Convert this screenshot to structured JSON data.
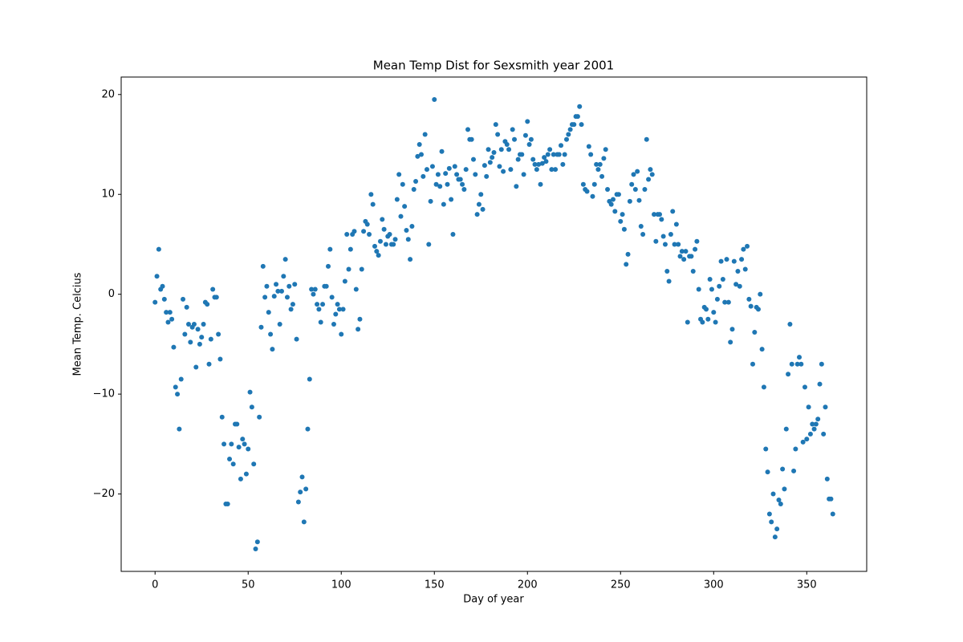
{
  "chart_data": {
    "type": "scatter",
    "title": "Mean Temp Dist for Sexsmith year 2001",
    "xlabel": "Day of year",
    "ylabel": "Mean Temp. Celcius",
    "color": "#1f77b4",
    "xlim": [
      -18.2,
      382.2
    ],
    "ylim": [
      -27.75,
      21.75
    ],
    "xticks": [
      0,
      50,
      100,
      150,
      200,
      250,
      300,
      350
    ],
    "yticks": [
      {
        "value": -20,
        "label": "−20"
      },
      {
        "value": -10,
        "label": "−10"
      },
      0,
      10,
      20
    ],
    "x": [
      0,
      1,
      2,
      3,
      4,
      5,
      6,
      7,
      8,
      9,
      10,
      11,
      12,
      13,
      14,
      15,
      16,
      17,
      18,
      19,
      20,
      21,
      22,
      23,
      24,
      25,
      26,
      27,
      28,
      29,
      30,
      31,
      32,
      33,
      34,
      35,
      36,
      37,
      38,
      39,
      40,
      41,
      42,
      43,
      44,
      45,
      46,
      47,
      48,
      49,
      50,
      51,
      52,
      53,
      54,
      55,
      56,
      57,
      58,
      59,
      60,
      61,
      62,
      63,
      64,
      65,
      66,
      67,
      68,
      69,
      70,
      71,
      72,
      73,
      74,
      75,
      76,
      77,
      78,
      79,
      80,
      81,
      82,
      83,
      84,
      85,
      86,
      87,
      88,
      89,
      90,
      91,
      92,
      93,
      94,
      95,
      96,
      97,
      98,
      99,
      100,
      101,
      102,
      103,
      104,
      105,
      106,
      107,
      108,
      109,
      110,
      111,
      112,
      113,
      114,
      115,
      116,
      117,
      118,
      119,
      120,
      121,
      122,
      123,
      124,
      125,
      126,
      127,
      128,
      129,
      130,
      131,
      132,
      133,
      134,
      135,
      136,
      137,
      138,
      139,
      140,
      141,
      142,
      143,
      144,
      145,
      146,
      147,
      148,
      149,
      150,
      151,
      152,
      153,
      154,
      155,
      156,
      157,
      158,
      159,
      160,
      161,
      162,
      163,
      164,
      165,
      166,
      167,
      168,
      169,
      170,
      171,
      172,
      173,
      174,
      175,
      176,
      177,
      178,
      179,
      180,
      181,
      182,
      183,
      184,
      185,
      186,
      187,
      188,
      189,
      190,
      191,
      192,
      193,
      194,
      195,
      196,
      197,
      198,
      199,
      200,
      201,
      202,
      203,
      204,
      205,
      206,
      207,
      208,
      209,
      210,
      211,
      212,
      213,
      214,
      215,
      216,
      217,
      218,
      219,
      220,
      221,
      222,
      223,
      224,
      225,
      226,
      227,
      228,
      229,
      230,
      231,
      232,
      233,
      234,
      235,
      236,
      237,
      238,
      239,
      240,
      241,
      242,
      243,
      244,
      245,
      246,
      247,
      248,
      249,
      250,
      251,
      252,
      253,
      254,
      255,
      256,
      257,
      258,
      259,
      260,
      261,
      262,
      263,
      264,
      265,
      266,
      267,
      268,
      269,
      270,
      271,
      272,
      273,
      274,
      275,
      276,
      277,
      278,
      279,
      280,
      281,
      282,
      283,
      284,
      285,
      286,
      287,
      288,
      289,
      290,
      291,
      292,
      293,
      294,
      295,
      296,
      297,
      298,
      299,
      300,
      301,
      302,
      303,
      304,
      305,
      306,
      307,
      308,
      309,
      310,
      311,
      312,
      313,
      314,
      315,
      316,
      317,
      318,
      319,
      320,
      321,
      322,
      323,
      324,
      325,
      326,
      327,
      328,
      329,
      330,
      331,
      332,
      333,
      334,
      335,
      336,
      337,
      338,
      339,
      340,
      341,
      342,
      343,
      344,
      345,
      346,
      347,
      348,
      349,
      350,
      351,
      352,
      353,
      354,
      355,
      356,
      357,
      358,
      359,
      360,
      361,
      362,
      363,
      364
    ],
    "values": [
      -0.8,
      1.8,
      4.5,
      0.5,
      0.8,
      -0.5,
      -1.8,
      -2.8,
      -1.8,
      -2.5,
      -5.3,
      -9.3,
      -10,
      -13.5,
      -8.5,
      -0.5,
      -4,
      -1.3,
      -3,
      -4.8,
      -3.3,
      -3,
      -7.3,
      -3.5,
      -5,
      -4.3,
      -3,
      -0.8,
      -1,
      -7,
      -4.5,
      0.5,
      -0.3,
      -0.3,
      -4,
      -6.5,
      -12.3,
      -15,
      -21,
      -21,
      -16.5,
      -15,
      -17,
      -13,
      -13,
      -15.3,
      -18.5,
      -14.5,
      -15,
      -18,
      -15.5,
      -9.8,
      -11.3,
      -17,
      -25.5,
      -24.8,
      -12.3,
      -3.3,
      2.8,
      -0.3,
      0.8,
      -1.8,
      -4,
      -5.5,
      -0.2,
      1,
      0.3,
      -3,
      0.3,
      1.8,
      3.5,
      -0.3,
      0.8,
      -1.5,
      -1,
      1,
      -4.5,
      -20.8,
      -19.8,
      -18.3,
      -22.8,
      -19.5,
      -13.5,
      -8.5,
      0.5,
      0,
      0.5,
      -1,
      -1.5,
      -2.8,
      -1,
      0.8,
      0.8,
      2.8,
      4.5,
      -0.3,
      -3,
      -2,
      -1,
      -1.5,
      -4,
      -1.5,
      1.3,
      6,
      2.5,
      4.5,
      6,
      6.3,
      0.5,
      -3.5,
      -2.5,
      2.5,
      6.3,
      7.3,
      7,
      6,
      10,
      9,
      4.8,
      4.3,
      3.9,
      5.3,
      7.5,
      6.5,
      5,
      5.8,
      6,
      5,
      5,
      5.5,
      9.5,
      12,
      7.8,
      11,
      8.8,
      6.4,
      5.5,
      3.5,
      6.8,
      10.5,
      11.3,
      13.8,
      15,
      14,
      11.8,
      16,
      12.5,
      5,
      9.3,
      12.8,
      19.5,
      11,
      12,
      10.8,
      14.3,
      9,
      12.1,
      11,
      12.6,
      9.5,
      6,
      12.8,
      12,
      11.5,
      11.5,
      11,
      10.5,
      12.5,
      16.5,
      15.5,
      15.5,
      13.5,
      12,
      8,
      9,
      10,
      8.5,
      12.9,
      11.8,
      14.5,
      13.2,
      13.7,
      14.2,
      17,
      16,
      12.8,
      14.5,
      12.3,
      15.3,
      15,
      14.5,
      12.5,
      16.5,
      15.5,
      10.8,
      13.5,
      14,
      14,
      12,
      15.9,
      17.3,
      15,
      15.5,
      13.5,
      13,
      12.5,
      13,
      11,
      13.1,
      13.7,
      13.3,
      14,
      14.5,
      12.5,
      14,
      12.5,
      14,
      14,
      14.9,
      13,
      14,
      15.5,
      16,
      16.5,
      17,
      17,
      17.8,
      17.8,
      18.8,
      17,
      11,
      10.5,
      10.3,
      14.8,
      14,
      9.8,
      11,
      13,
      12.5,
      13,
      11.8,
      13.6,
      14.5,
      10.5,
      9.3,
      9,
      9.5,
      8.3,
      10,
      10,
      7.3,
      8,
      6.5,
      3,
      4,
      9.3,
      11,
      12,
      10.5,
      12.3,
      9.4,
      6.8,
      6,
      10.5,
      15.5,
      11.5,
      12.5,
      12,
      8,
      5.3,
      8,
      8,
      7.5,
      5.8,
      5,
      2.3,
      1.3,
      6,
      8.3,
      5,
      7,
      5,
      3.8,
      4.3,
      3.5,
      4.3,
      -2.8,
      3.8,
      3.8,
      2.3,
      4.5,
      5.3,
      0.5,
      -2.5,
      -2.8,
      -1.3,
      -1.5,
      -2.5,
      1.5,
      0.5,
      -1.8,
      -2.8,
      -0.5,
      0.8,
      3.3,
      1.5,
      -0.8,
      3.5,
      -0.8,
      -4.8,
      -3.5,
      3.3,
      1,
      2.3,
      0.8,
      3.5,
      4.5,
      2.5,
      4.8,
      -0.5,
      -1.2,
      -7,
      -3.8,
      -1.3,
      -1.5,
      0,
      -5.5,
      -9.3,
      -15.5,
      -17.8,
      -22,
      -22.8,
      -20,
      -24.3,
      -23.5,
      -20.6,
      -21,
      -17.5,
      -19.5,
      -13.5,
      -8,
      -3,
      -7,
      -17.7,
      -15.5,
      -7,
      -6.3,
      -7,
      -14.8,
      -9.3,
      -14.5,
      -11.3,
      -14,
      -13,
      -13.5,
      -13,
      -12.5,
      -9,
      -7,
      -14,
      -11.3,
      -18.5,
      -20.5,
      -20.5,
      -22
    ]
  }
}
